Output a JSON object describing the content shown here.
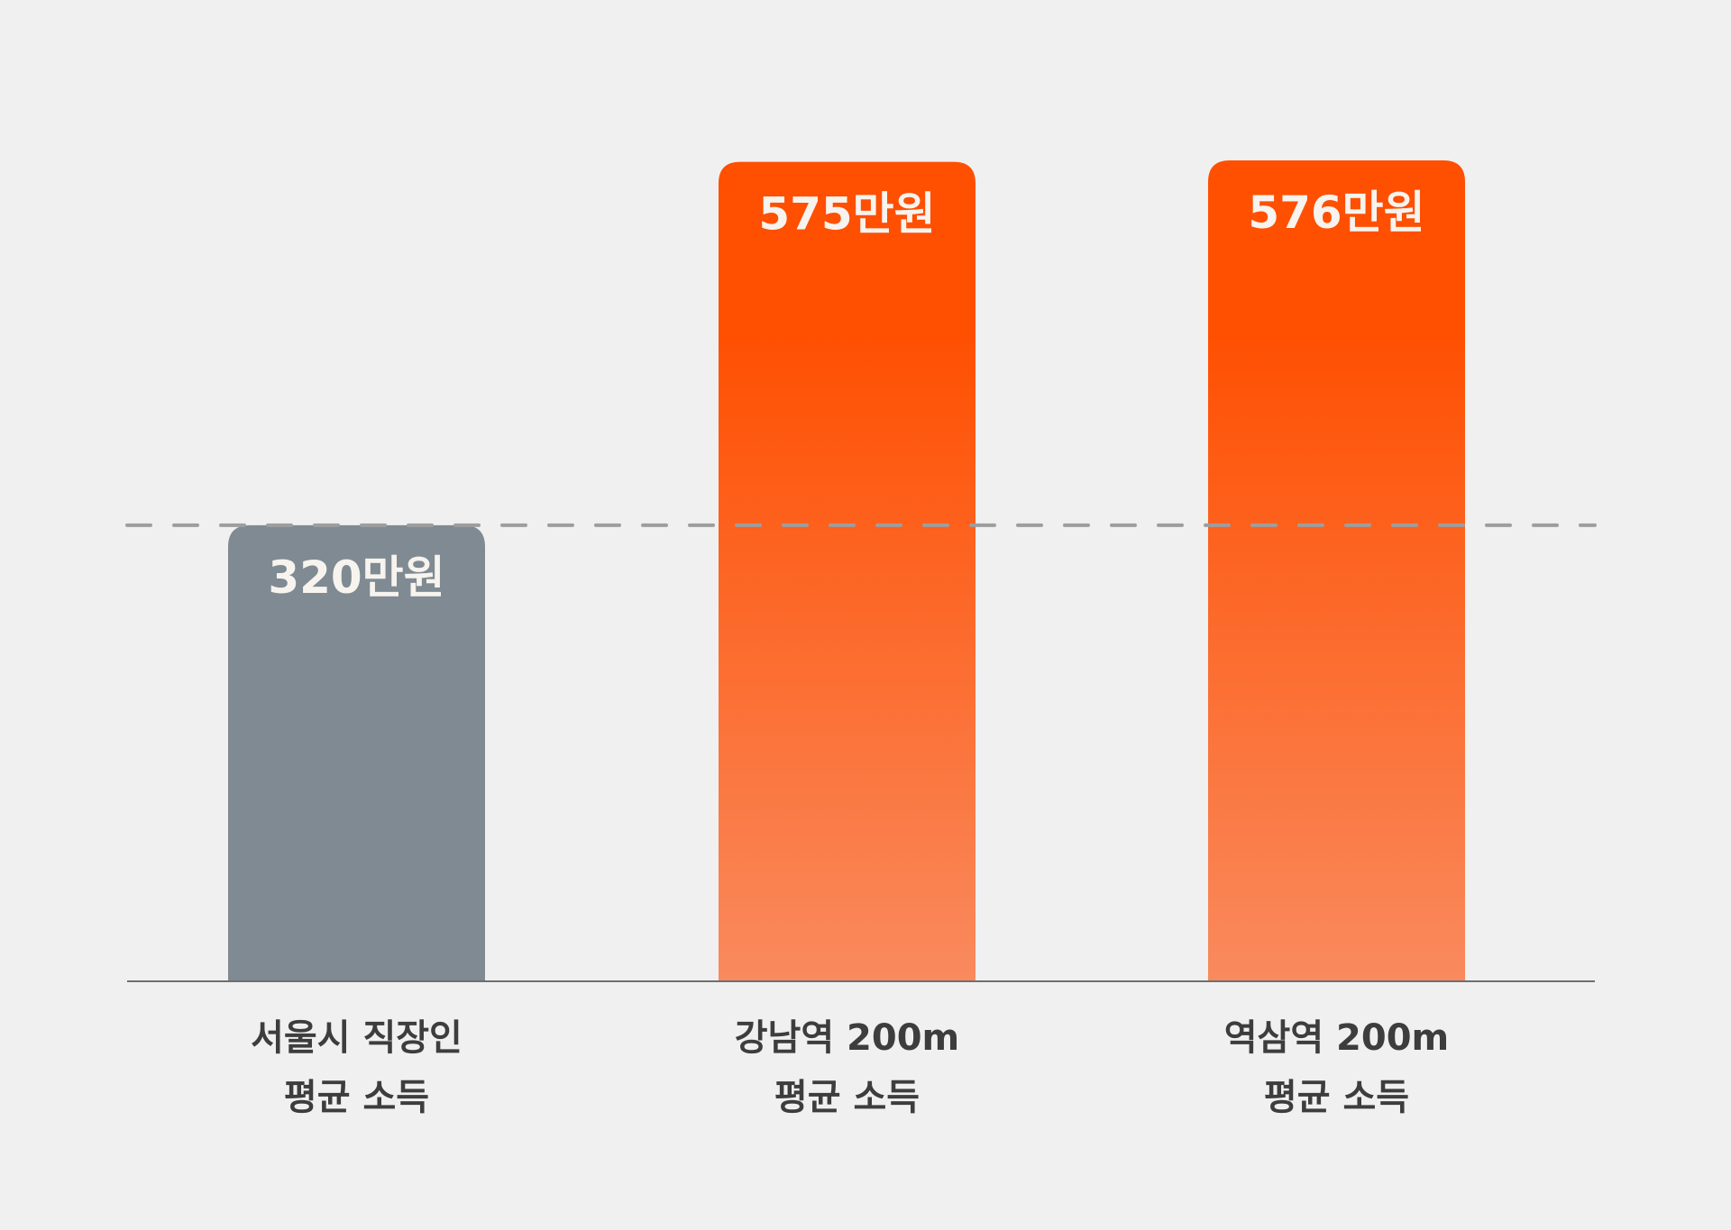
{
  "chart_data": {
    "type": "bar",
    "categories": [
      [
        "서울시 직장인",
        "평균 소득"
      ],
      [
        "강남역 200m",
        "평균 소득"
      ],
      [
        "역삼역 200m",
        "평균 소득"
      ]
    ],
    "values": [
      320,
      575,
      576
    ],
    "value_labels": [
      "320만원",
      "575만원",
      "576만원"
    ],
    "reference_line": 320,
    "ylim": [
      0,
      576
    ],
    "grid": false,
    "colors": {
      "background": "#f0f0f0",
      "baseline_bar": "#7f8a92",
      "highlight_top": "#ff4f00",
      "highlight_bottom": "#f98a5e",
      "reference_line": "#9e9e9e",
      "axis": "#6f6f6f",
      "value_text": "#f7f3ee",
      "label_text": "#3d3d3d"
    }
  }
}
